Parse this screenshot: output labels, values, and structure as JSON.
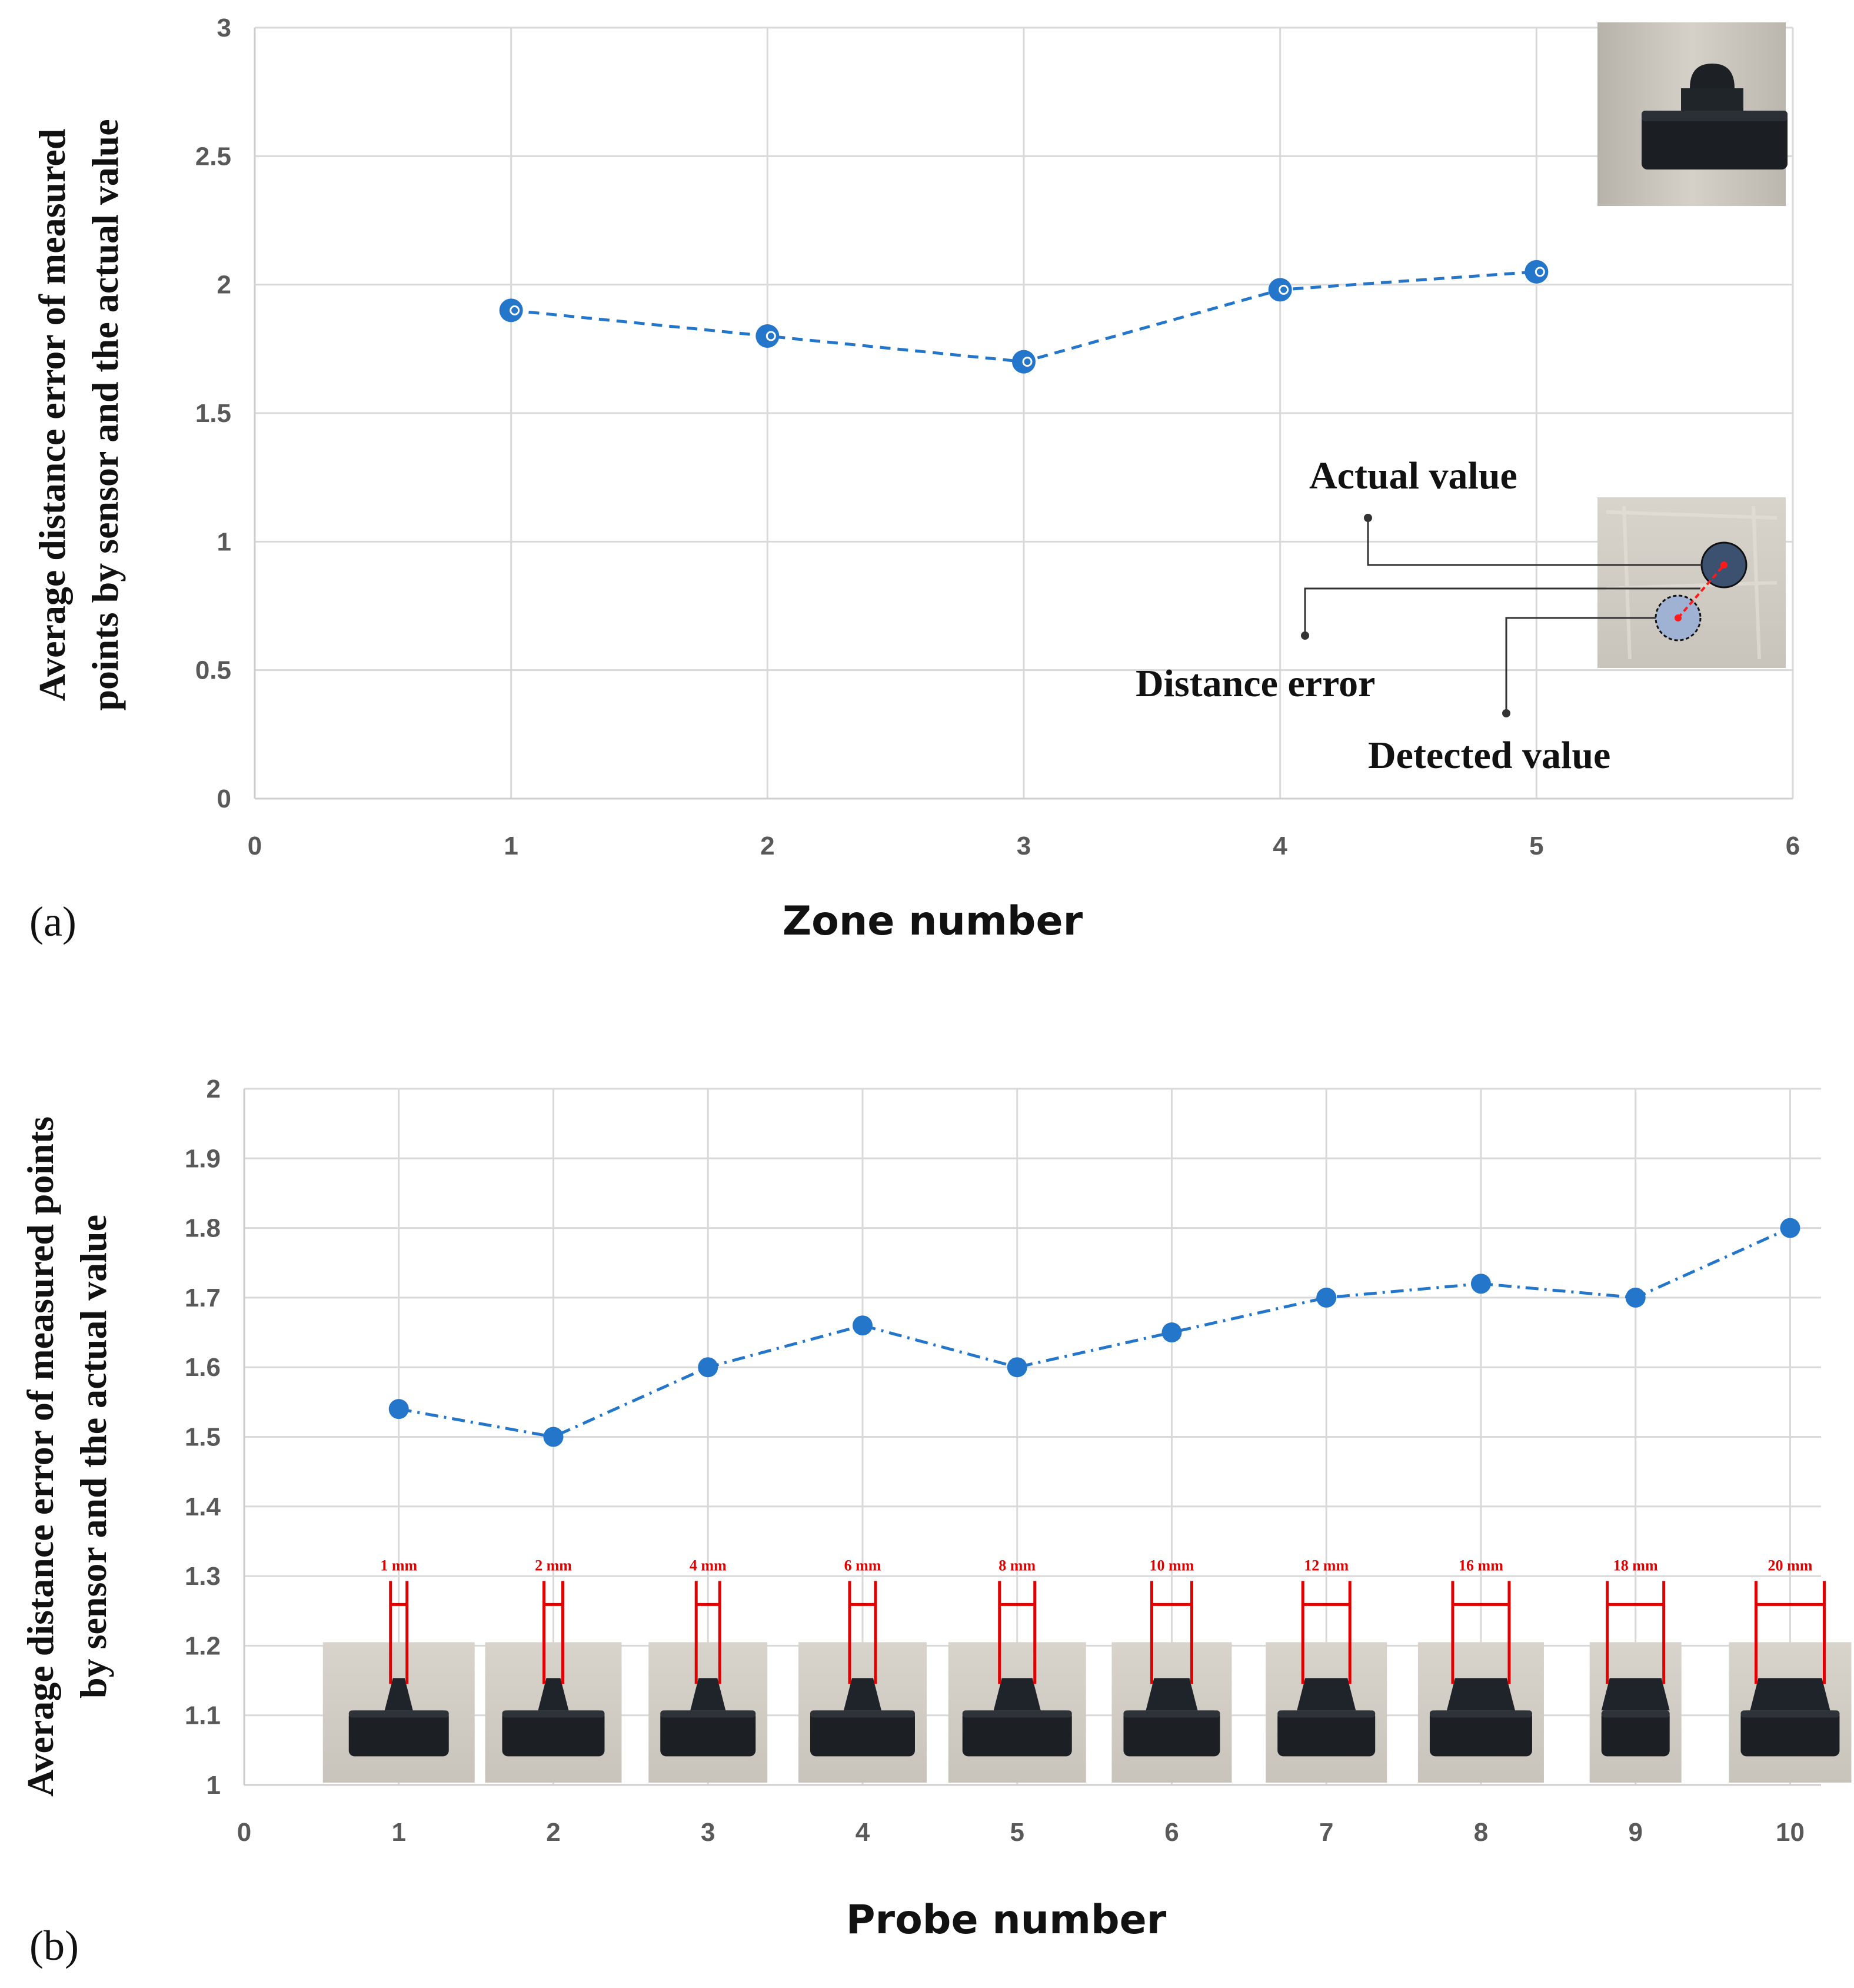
{
  "chart_data": [
    {
      "panel_label": "(a)",
      "type": "line",
      "title": "",
      "xlabel": "Zone number",
      "ylabel_lines": [
        "Average distance error of measured",
        "points by sensor and the actual value"
      ],
      "x": [
        1,
        2,
        3,
        4,
        5
      ],
      "values": [
        1.9,
        1.8,
        1.7,
        1.98,
        2.05
      ],
      "xlim": [
        0,
        6
      ],
      "ylim": [
        0,
        3
      ],
      "xticks": [
        "0",
        "1",
        "2",
        "3",
        "4",
        "5",
        "6"
      ],
      "yticks": [
        "0",
        "0.5",
        "1",
        "1.5",
        "2",
        "2.5",
        "3"
      ],
      "line_style": "dashed",
      "color": "#2376c9",
      "grid": true,
      "legend": "inset diagram (bottom-right)",
      "annotations": {
        "actual": "Actual value",
        "distance": "Distance error",
        "detected": "Detected value"
      }
    },
    {
      "panel_label": "(b)",
      "type": "line",
      "title": "",
      "xlabel": "Probe number",
      "ylabel_lines": [
        "Average distance error of measured points",
        "by sensor and the actual value"
      ],
      "x": [
        1,
        2,
        3,
        4,
        5,
        6,
        7,
        8,
        9,
        10
      ],
      "values": [
        1.54,
        1.5,
        1.6,
        1.66,
        1.6,
        1.65,
        1.7,
        1.72,
        1.7,
        1.8
      ],
      "xlim": [
        0,
        10.2
      ],
      "ylim": [
        1,
        2
      ],
      "xticks": [
        "0",
        "1",
        "2",
        "3",
        "4",
        "5",
        "6",
        "7",
        "8",
        "9",
        "10"
      ],
      "yticks": [
        "1",
        "1.1",
        "1.2",
        "1.3",
        "1.4",
        "1.5",
        "1.6",
        "1.7",
        "1.8",
        "1.9",
        "2"
      ],
      "line_style": "dash-dot",
      "color": "#2376c9",
      "grid": true,
      "probe_sizes": [
        "1 mm",
        "2 mm",
        "4 mm",
        "6 mm",
        "8 mm",
        "10 mm",
        "12 mm",
        "16 mm",
        "18 mm",
        "20 mm"
      ]
    }
  ]
}
